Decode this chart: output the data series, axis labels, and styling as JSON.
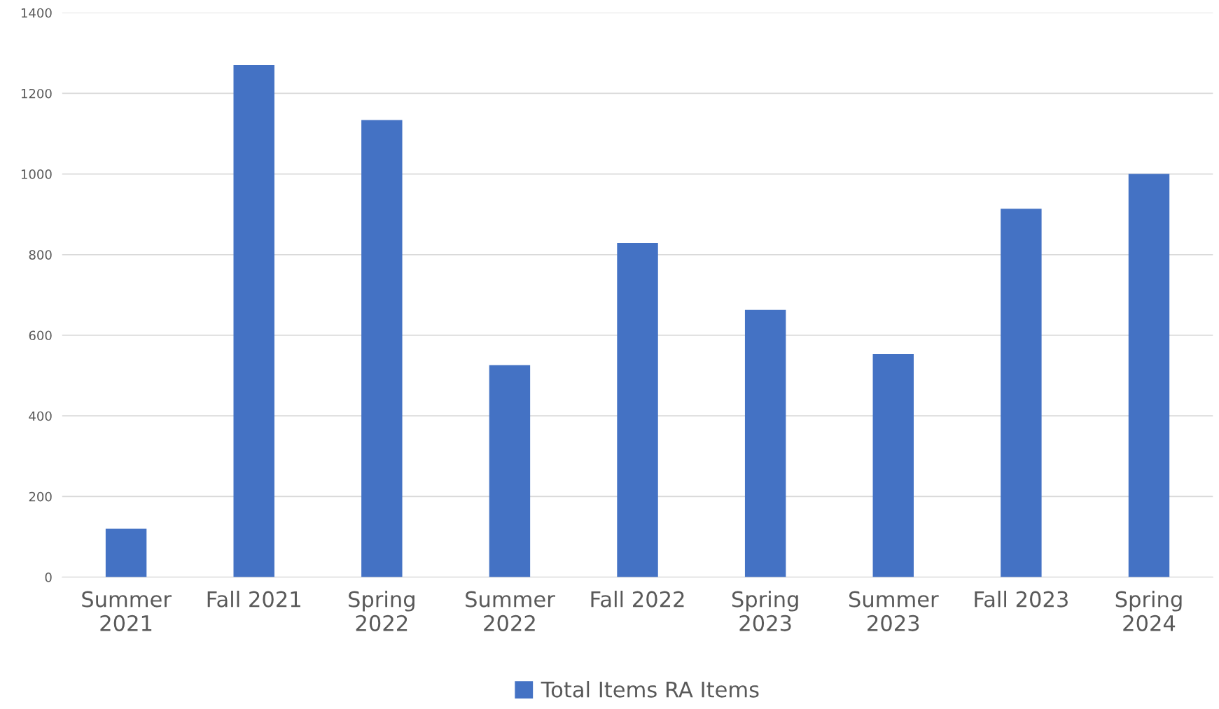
{
  "chart_data": {
    "type": "bar",
    "categories": [
      "Summer\n2021",
      "Fall 2021",
      "Spring\n2022",
      "Summer\n2022",
      "Fall 2022",
      "Spring\n2023",
      "Summer\n2023",
      "Fall 2023",
      "Spring\n2024"
    ],
    "series": [
      {
        "name": "Total Items RA Items",
        "color": "#4472c4",
        "values": [
          120,
          1270,
          1134,
          526,
          829,
          663,
          553,
          914,
          1000
        ]
      }
    ],
    "ylim": [
      0,
      1400
    ],
    "yticks": [
      0,
      200,
      400,
      600,
      800,
      1000,
      1200,
      1400
    ],
    "grid": "y",
    "legend": "bottom"
  }
}
